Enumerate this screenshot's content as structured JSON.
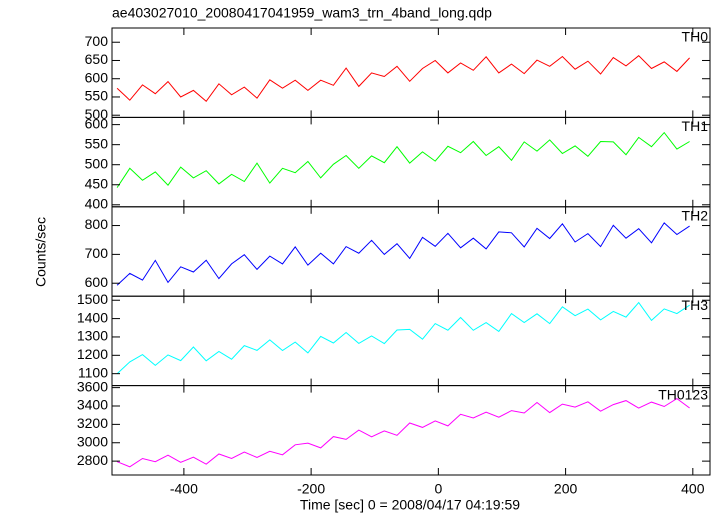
{
  "chart_data": {
    "type": "line",
    "title": "ae403027010_20080417041959_wam3_trn_4band_long.qdp",
    "xlabel": "Time [sec] 0 = 2008/04/17 04:19:59",
    "ylabel": "Counts/sec",
    "xlim": [
      -513,
      427
    ],
    "xticks": [
      -400,
      -200,
      0,
      200,
      400
    ],
    "x": [
      -505,
      -485,
      -465,
      -445,
      -425,
      -405,
      -385,
      -365,
      -345,
      -325,
      -305,
      -285,
      -265,
      -245,
      -225,
      -205,
      -185,
      -165,
      -145,
      -125,
      -105,
      -85,
      -65,
      -45,
      -25,
      -5,
      15,
      35,
      55,
      75,
      95,
      115,
      135,
      155,
      175,
      195,
      215,
      235,
      255,
      275,
      295,
      315,
      335,
      355,
      375,
      395
    ],
    "panels": [
      {
        "name": "TH0",
        "color": "#ff0000",
        "ylim": [
          494,
          739
        ],
        "yticks": [
          500,
          550,
          600,
          650,
          700
        ],
        "values": [
          574,
          541,
          583,
          559,
          592,
          550,
          568,
          538,
          586,
          556,
          577,
          547,
          597,
          574,
          596,
          568,
          596,
          582,
          629,
          579,
          616,
          606,
          634,
          593,
          628,
          650,
          616,
          643,
          623,
          660,
          616,
          640,
          614,
          651,
          634,
          661,
          626,
          648,
          613,
          658,
          635,
          663,
          628,
          646,
          620,
          657
        ]
      },
      {
        "name": "TH1",
        "color": "#00ff00",
        "ylim": [
          395,
          618
        ],
        "yticks": [
          400,
          450,
          500,
          550,
          600
        ],
        "values": [
          443,
          491,
          461,
          482,
          449,
          494,
          467,
          485,
          452,
          476,
          458,
          504,
          454,
          491,
          480,
          508,
          467,
          501,
          523,
          491,
          522,
          505,
          545,
          504,
          532,
          509,
          546,
          530,
          558,
          523,
          545,
          511,
          557,
          534,
          562,
          528,
          547,
          521,
          558,
          557,
          525,
          568,
          545,
          580,
          539,
          558
        ]
      },
      {
        "name": "TH2",
        "color": "#0000ff",
        "ylim": [
          555,
          865
        ],
        "yticks": [
          600,
          700,
          800
        ],
        "values": [
          593,
          634,
          611,
          679,
          603,
          657,
          639,
          680,
          616,
          667,
          699,
          648,
          694,
          667,
          726,
          663,
          704,
          667,
          727,
          704,
          749,
          700,
          737,
          686,
          759,
          728,
          773,
          723,
          756,
          719,
          778,
          775,
          726,
          790,
          755,
          806,
          743,
          772,
          727,
          801,
          756,
          789,
          740,
          809,
          769,
          798
        ]
      },
      {
        "name": "TH3",
        "color": "#00ffff",
        "ylim": [
          1035,
          1522
        ],
        "yticks": [
          1100,
          1200,
          1300,
          1400,
          1500
        ],
        "values": [
          1100,
          1164,
          1204,
          1145,
          1202,
          1171,
          1245,
          1170,
          1221,
          1179,
          1253,
          1227,
          1284,
          1226,
          1272,
          1213,
          1303,
          1267,
          1324,
          1265,
          1306,
          1264,
          1338,
          1341,
          1288,
          1373,
          1337,
          1406,
          1336,
          1378,
          1330,
          1427,
          1379,
          1426,
          1373,
          1464,
          1416,
          1452,
          1393,
          1439,
          1408,
          1487,
          1390,
          1453,
          1427,
          1473
        ]
      },
      {
        "name": "TH0123",
        "color": "#ff00ff",
        "ylim": [
          2649,
          3622
        ],
        "yticks": [
          2800,
          3000,
          3200,
          3400,
          3600
        ],
        "values": [
          2794,
          2738,
          2829,
          2794,
          2864,
          2787,
          2843,
          2766,
          2878,
          2829,
          2899,
          2840,
          2907,
          2869,
          2978,
          2996,
          2944,
          3067,
          3036,
          3138,
          3065,
          3129,
          3081,
          3215,
          3167,
          3238,
          3183,
          3310,
          3269,
          3333,
          3278,
          3350,
          3324,
          3438,
          3328,
          3421,
          3388,
          3446,
          3343,
          3415,
          3459,
          3377,
          3442,
          3395,
          3481,
          3378
        ]
      }
    ]
  }
}
